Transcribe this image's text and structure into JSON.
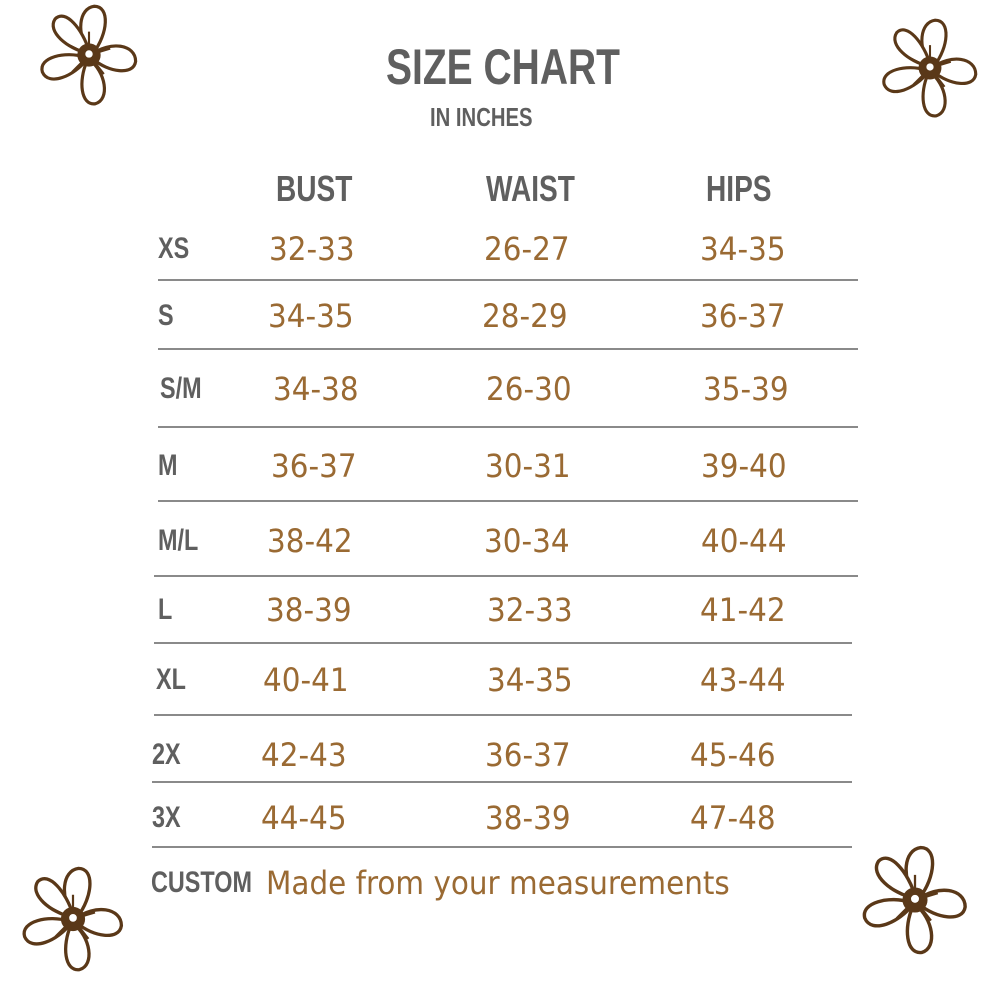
{
  "title": "SIZE CHART",
  "subtitle": "IN INCHES",
  "colors": {
    "label": "#5f5f5f",
    "value": "#9a6a33",
    "flower": "#5a3818",
    "rule": "#8a8a8a"
  },
  "columns": [
    "BUST",
    "WAIST",
    "HIPS"
  ],
  "rows": [
    {
      "size": "XS",
      "values": [
        "32-33",
        "26-27",
        "34-35"
      ]
    },
    {
      "size": "S",
      "values": [
        "34-35",
        "28-29",
        "36-37"
      ]
    },
    {
      "size": "S/M",
      "values": [
        "34-38",
        "26-30",
        "35-39"
      ]
    },
    {
      "size": "M",
      "values": [
        "36-37",
        "30-31",
        "39-40"
      ]
    },
    {
      "size": "M/L",
      "values": [
        "38-42",
        "30-34",
        "40-44"
      ]
    },
    {
      "size": "L",
      "values": [
        "38-39",
        "32-33",
        "41-42"
      ]
    },
    {
      "size": "XL",
      "values": [
        "40-41",
        "34-35",
        "43-44"
      ]
    },
    {
      "size": "2X",
      "values": [
        "42-43",
        "36-37",
        "45-46"
      ]
    },
    {
      "size": "3X",
      "values": [
        "44-45",
        "38-39",
        "47-48"
      ]
    }
  ],
  "custom": {
    "size": "CUSTOM",
    "text": "Made from your measurements"
  },
  "decorations": [
    "flower-icon",
    "flower-icon",
    "flower-icon",
    "flower-icon"
  ]
}
